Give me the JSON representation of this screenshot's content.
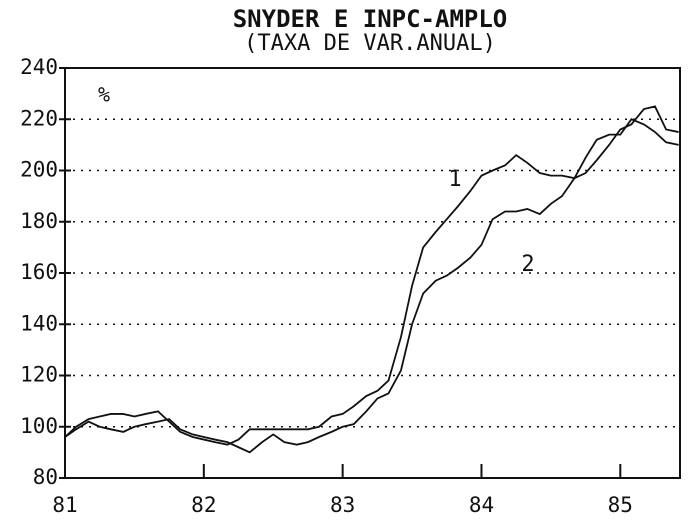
{
  "chart_data": {
    "type": "line",
    "title": "SNYDER E INPC-AMPLO",
    "subtitle": "(TAXA DE VAR.ANUAL)",
    "y_label": "%",
    "annotations": [
      "1",
      "2"
    ],
    "x": [
      81,
      81.08,
      81.17,
      81.25,
      81.33,
      81.42,
      81.5,
      81.58,
      81.67,
      81.75,
      81.83,
      81.92,
      82,
      82.08,
      82.17,
      82.25,
      82.33,
      82.42,
      82.5,
      82.58,
      82.67,
      82.75,
      82.83,
      82.92,
      83,
      83.08,
      83.17,
      83.25,
      83.33,
      83.42,
      83.5,
      83.58,
      83.67,
      83.75,
      83.83,
      83.92,
      84,
      84.08,
      84.17,
      84.25,
      84.33,
      84.42,
      84.5,
      84.58,
      84.67,
      84.75,
      84.83,
      84.92,
      85,
      85.08,
      85.17,
      85.25,
      85.33,
      85.42
    ],
    "series": [
      {
        "name": "1",
        "color": "#111111",
        "values": [
          96,
          100,
          103,
          104,
          105,
          105,
          104,
          105,
          106,
          102,
          98,
          96,
          95,
          94,
          93,
          95,
          99,
          99,
          99,
          99,
          99,
          99,
          100,
          104,
          105,
          108,
          112,
          114,
          118,
          135,
          155,
          170,
          176,
          181,
          186,
          192,
          198,
          200,
          202,
          206,
          203,
          199,
          198,
          198,
          197,
          199,
          204,
          210,
          216,
          218,
          224,
          225,
          216,
          215
        ]
      },
      {
        "name": "2",
        "color": "#111111",
        "values": [
          96,
          99,
          102,
          100,
          99,
          98,
          100,
          101,
          102,
          103,
          99,
          97,
          96,
          95,
          94,
          92,
          90,
          94,
          97,
          94,
          93,
          94,
          96,
          98,
          100,
          101,
          106,
          111,
          113,
          122,
          140,
          152,
          157,
          159,
          162,
          166,
          171,
          181,
          184,
          184,
          185,
          183,
          187,
          190,
          197,
          205,
          212,
          214,
          214,
          220,
          218,
          215,
          211,
          210
        ]
      }
    ],
    "xlim": [
      81,
      85.43
    ],
    "xticks": [
      81,
      82,
      83,
      84,
      85
    ],
    "ylim": [
      80,
      240
    ],
    "yticks": [
      80,
      100,
      120,
      140,
      160,
      180,
      200,
      220,
      240
    ],
    "grid": true
  }
}
